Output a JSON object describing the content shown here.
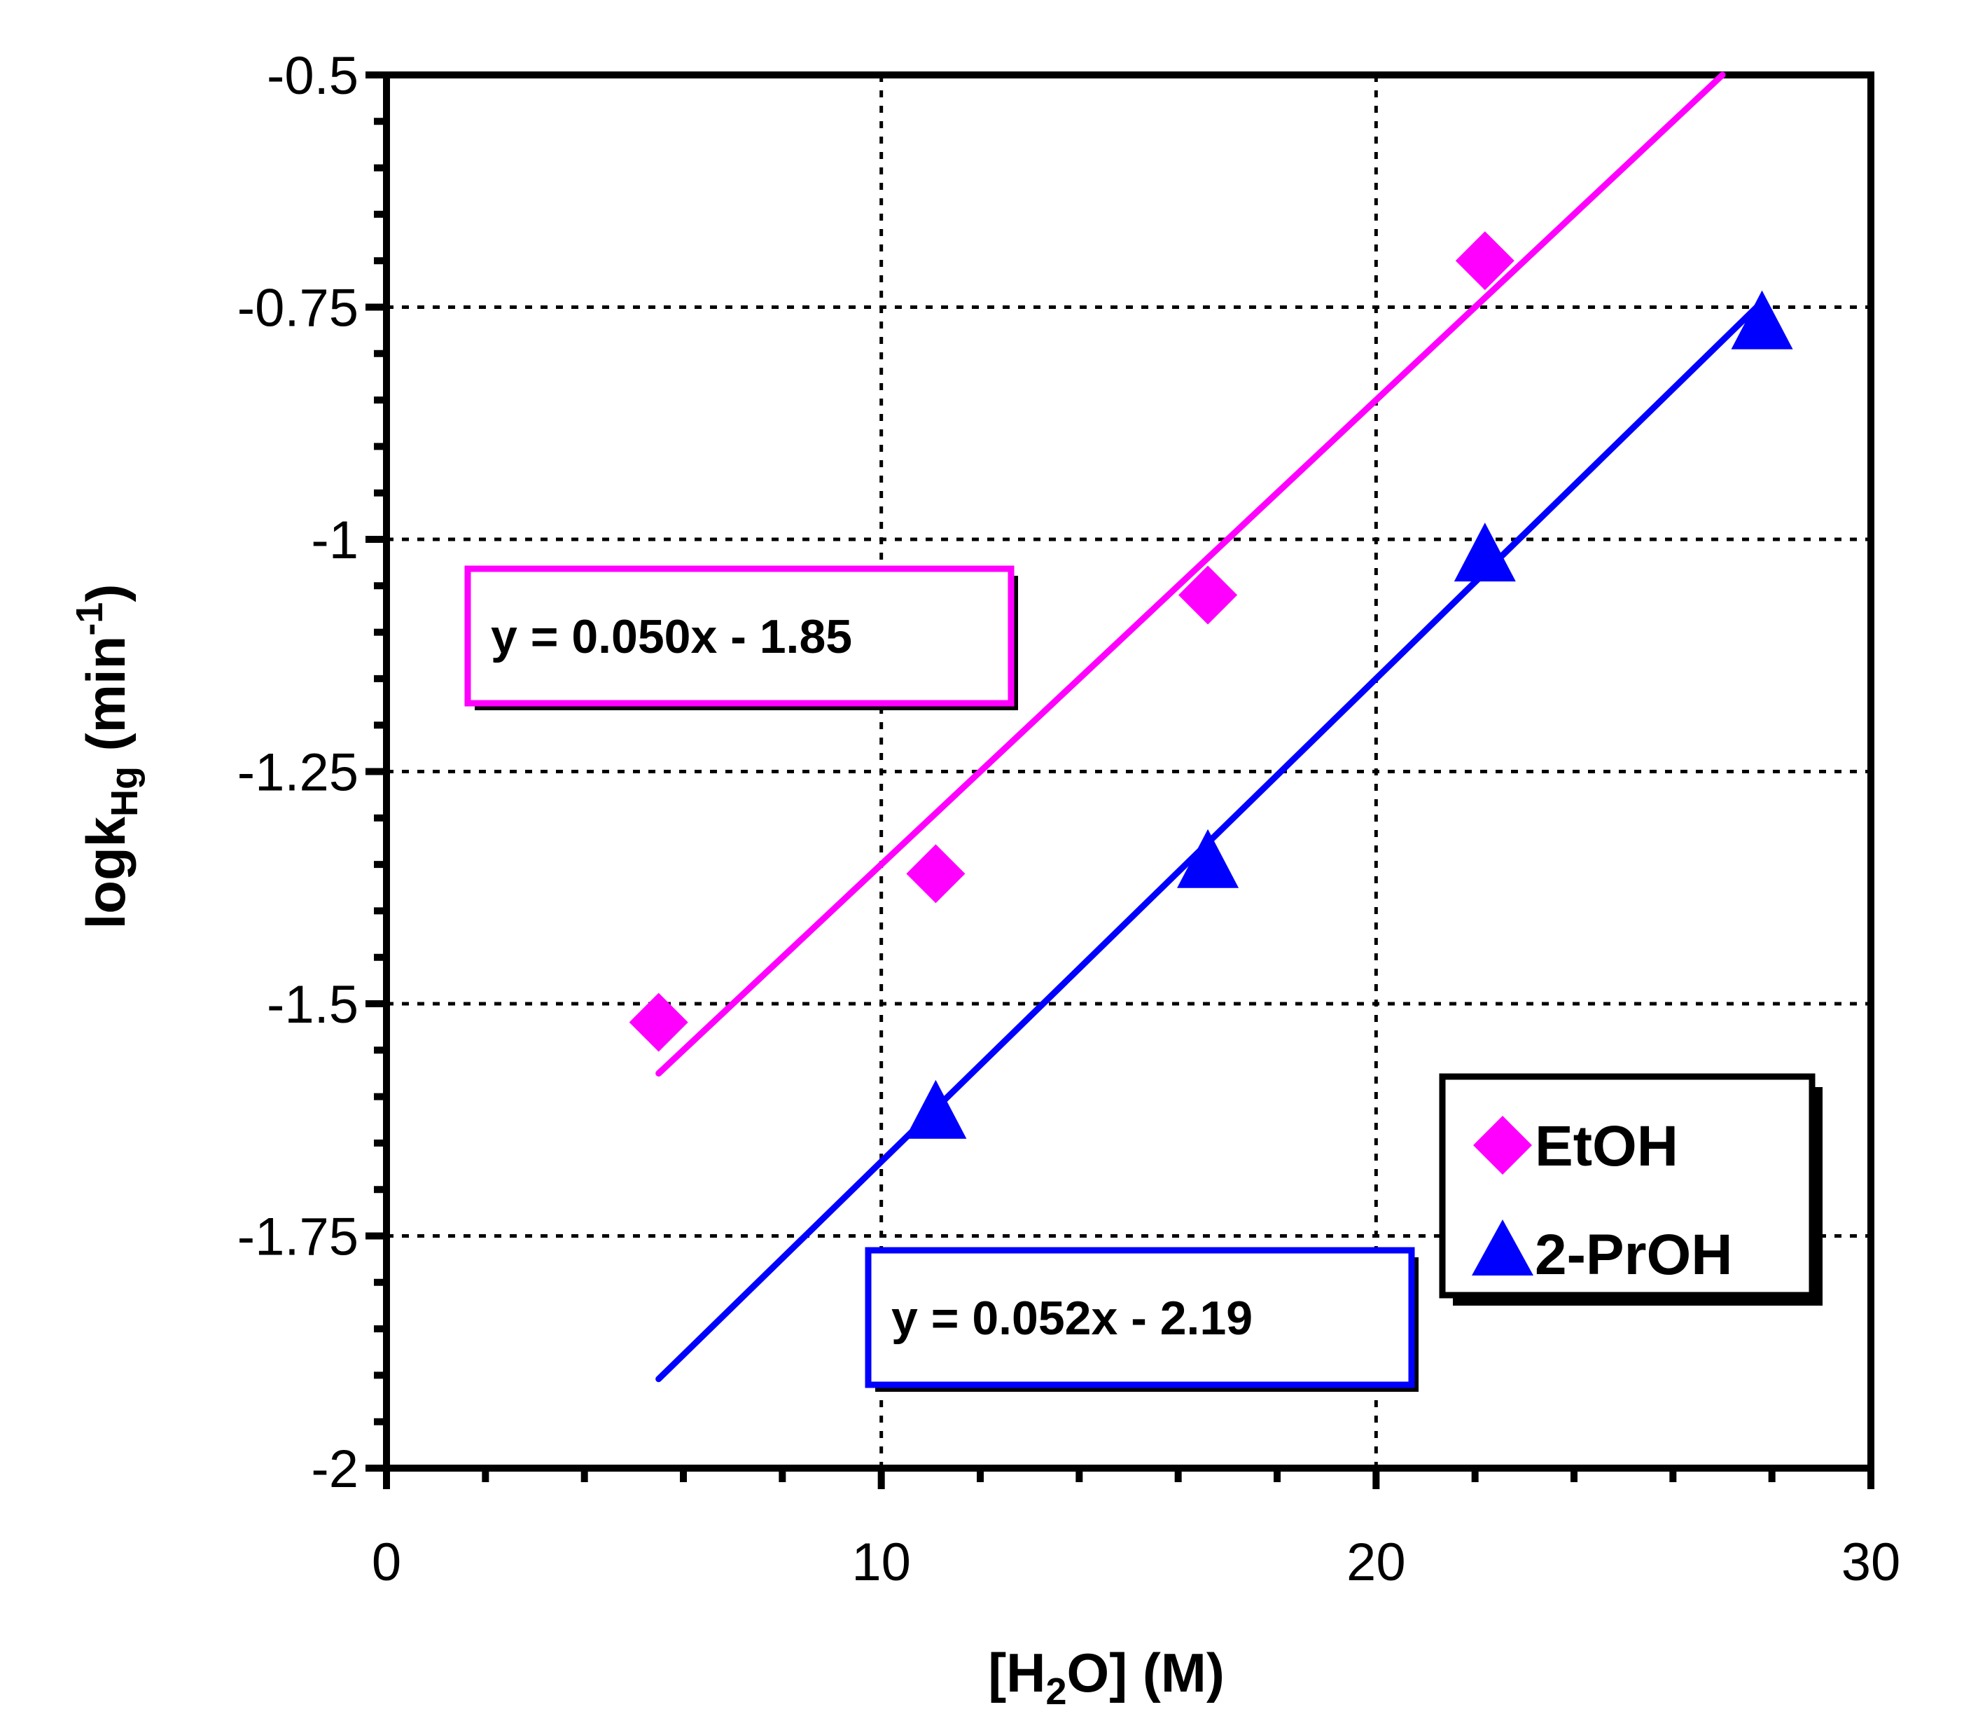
{
  "chart_data": {
    "type": "scatter",
    "title": "",
    "xlabel": {
      "main": "[H",
      "sub": "2",
      "rest": "O] (M)"
    },
    "ylabel": {
      "main": "logk",
      "sub": "Hg",
      "mid": " (min",
      "sup": "-1",
      "end": ")"
    },
    "xlim": [
      0,
      30
    ],
    "ylim": [
      -2,
      -0.5
    ],
    "x_ticks": [
      0,
      10,
      20,
      30
    ],
    "x_tick_labels": [
      "0",
      "10",
      "20",
      "30"
    ],
    "y_ticks": [
      -2,
      -1.75,
      -1.5,
      -1.25,
      -1,
      -0.75,
      -0.5
    ],
    "y_tick_labels": [
      "-2",
      "-1.75",
      "-1.5",
      "-1.25",
      "-1",
      "-0.75",
      "-0.5"
    ],
    "grid": true,
    "legend_position": "bottom-right",
    "series": [
      {
        "name": "EtOH",
        "marker": "diamond",
        "color": "#ff00ff",
        "x": [
          5.5,
          11.1,
          16.6,
          22.2
        ],
        "y": [
          -1.52,
          -1.36,
          -1.06,
          -0.7
        ],
        "fit": {
          "slope": 0.05,
          "intercept": -1.85,
          "x_range": [
            5.5,
            27.3
          ]
        },
        "equation": "y = 0.050x - 1.85"
      },
      {
        "name": "2-PrOH",
        "marker": "triangle",
        "color": "#0000ff",
        "x": [
          11.1,
          16.6,
          22.2,
          27.8
        ],
        "y": [
          -1.62,
          -1.35,
          -1.02,
          -0.77
        ],
        "fit": {
          "slope": 0.052,
          "intercept": -2.19,
          "x_range": [
            5.5,
            27.8
          ]
        },
        "equation": "y = 0.052x - 2.19"
      }
    ]
  }
}
